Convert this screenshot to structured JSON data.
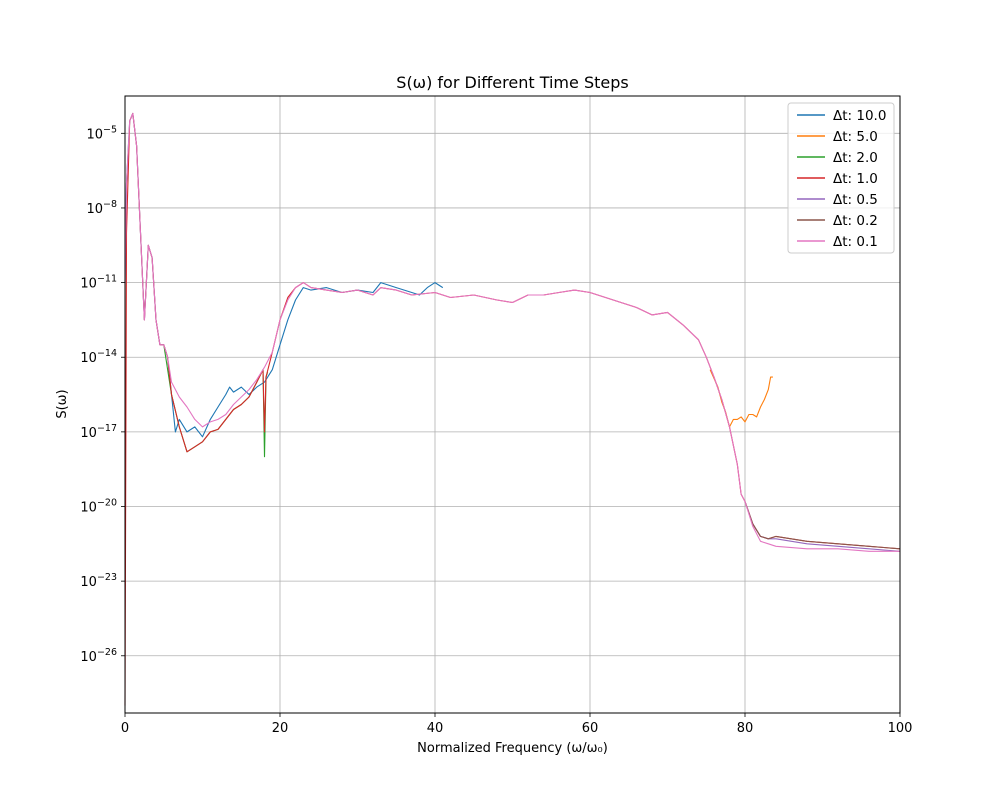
{
  "chart_data": {
    "type": "line",
    "title": "S(ω) for Different Time Steps",
    "xlabel": "Normalized Frequency (ω/ω₀)",
    "ylabel": "S(ω)",
    "xlim": [
      0,
      100
    ],
    "ylim_log10": [
      -28.3,
      -3.5
    ],
    "y_scale": "log",
    "grid": true,
    "legend_position": "top-right",
    "x_ticks": [
      0,
      20,
      40,
      60,
      80,
      100
    ],
    "y_ticks": [
      {
        "exp": -5,
        "label_base": "10",
        "label_exp": "−5"
      },
      {
        "exp": -8,
        "label_base": "10",
        "label_exp": "−8"
      },
      {
        "exp": -11,
        "label_base": "10",
        "label_exp": "−11"
      },
      {
        "exp": -14,
        "label_base": "10",
        "label_exp": "−14"
      },
      {
        "exp": -17,
        "label_base": "10",
        "label_exp": "−17"
      },
      {
        "exp": -20,
        "label_base": "10",
        "label_exp": "−20"
      },
      {
        "exp": -23,
        "label_base": "10",
        "label_exp": "−23"
      },
      {
        "exp": -26,
        "label_base": "10",
        "label_exp": "−26"
      }
    ],
    "series": [
      {
        "name": "Δt: 10.0",
        "color": "#1f77b4",
        "x": [
          0,
          0.2,
          0.6,
          1.0,
          1.5,
          2.0,
          2.5,
          3.0,
          3.5,
          4.0,
          4.5,
          5.0,
          5.5,
          6.0,
          6.5,
          7.0,
          8.0,
          9.0,
          10.0,
          11.0,
          12.0,
          13.0,
          13.5,
          14.0,
          15.0,
          16.0,
          17.0,
          18.0,
          19.0,
          20.0,
          21.0,
          22.0,
          23.0,
          24.0,
          26.0,
          28.0,
          30.0,
          32.0,
          33.0,
          35.0,
          37.0,
          38.0,
          39.0,
          40.0,
          41.0
        ],
        "y": [
          -11,
          -7,
          -4.5,
          -4.2,
          -5.5,
          -9,
          -12.5,
          -9.5,
          -10,
          -12.5,
          -13.5,
          -13.5,
          -14,
          -15.5,
          -17,
          -16.5,
          -17,
          -16.8,
          -17.2,
          -16.5,
          -16,
          -15.5,
          -15.2,
          -15.4,
          -15.2,
          -15.5,
          -15.2,
          -15,
          -14.5,
          -13.5,
          -12.5,
          -11.7,
          -11.2,
          -11.3,
          -11.2,
          -11.4,
          -11.3,
          -11.4,
          -11.0,
          -11.2,
          -11.4,
          -11.5,
          -11.2,
          -11.0,
          -11.2
        ]
      },
      {
        "name": "Δt: 5.0",
        "color": "#ff7f0e",
        "x": [
          75.5,
          76.5,
          77.0,
          77.5,
          78.0,
          78.5,
          79.0,
          79.5,
          80.0,
          80.5,
          81.0,
          81.5,
          82.0,
          82.5,
          83.0,
          83.3,
          83.6
        ],
        "y": [
          -14.5,
          -15.2,
          -15.8,
          -16.2,
          -16.8,
          -16.5,
          -16.5,
          -16.4,
          -16.6,
          -16.3,
          -16.3,
          -16.4,
          -16.0,
          -15.7,
          -15.3,
          -14.8,
          -14.8
        ]
      },
      {
        "name": "Δt: 2.0",
        "color": "#2ca02c",
        "x": [
          5.0,
          6.0,
          7.0,
          8.0,
          9.0,
          10.0,
          11.0,
          12.0,
          13.0,
          14.0,
          15.0,
          16.0,
          17.0,
          17.8,
          18.0,
          18.2,
          18.4
        ],
        "y": [
          -13.5,
          -15.5,
          -16.8,
          -17.8,
          -17.6,
          -17.4,
          -17.0,
          -16.9,
          -16.5,
          -16.1,
          -15.9,
          -15.6,
          -15.0,
          -14.5,
          -18.0,
          -14.8,
          -14.6
        ]
      },
      {
        "name": "Δt: 1.0",
        "color": "#d62728",
        "x": [
          0,
          0.2,
          0.6,
          1.0,
          1.5,
          2.0,
          2.5,
          3.0,
          3.5,
          4.0,
          4.5,
          5.0,
          5.5,
          6.0,
          7.0,
          8.0,
          9.0,
          10.0,
          11.0,
          12.0,
          13.0,
          14.0,
          15.0,
          16.0,
          17.0,
          17.8,
          18.0,
          18.2,
          19.0,
          20.0,
          21.0,
          22.0,
          23.0,
          24.0,
          26.0,
          28.0,
          30.0,
          32.0,
          33.0,
          35.0,
          37.0,
          40.0,
          42.0,
          45.0,
          48.0,
          50.0,
          52.0,
          54.0,
          56.0,
          58.0,
          60.0,
          62.0,
          64.0,
          66.0,
          68.0,
          70.0,
          72.0,
          74.0,
          75.0,
          76.0,
          77.0,
          78.0,
          79.0,
          79.5,
          80.0,
          81.0,
          82.0,
          83.0,
          84.0,
          88.0,
          92.0,
          96.0,
          100.0
        ],
        "y": [
          -28,
          -9,
          -4.5,
          -4.2,
          -5.5,
          -9,
          -12.5,
          -9.5,
          -10,
          -12.5,
          -13.5,
          -13.5,
          -14,
          -15.5,
          -16.8,
          -17.8,
          -17.6,
          -17.4,
          -17.0,
          -16.9,
          -16.5,
          -16.1,
          -15.9,
          -15.6,
          -15.0,
          -14.5,
          -17.0,
          -14.8,
          -13.8,
          -12.5,
          -11.6,
          -11.2,
          -11.0,
          -11.2,
          -11.3,
          -11.4,
          -11.3,
          -11.5,
          -11.2,
          -11.3,
          -11.5,
          -11.4,
          -11.6,
          -11.5,
          -11.7,
          -11.8,
          -11.5,
          -11.5,
          -11.4,
          -11.3,
          -11.4,
          -11.6,
          -11.8,
          -12.0,
          -12.3,
          -12.2,
          -12.7,
          -13.3,
          -14.0,
          -14.8,
          -15.7,
          -16.8,
          -18.3,
          -19.5,
          -19.8,
          -20.7,
          -21.2,
          -21.3,
          -21.2,
          -21.4,
          -21.5,
          -21.6,
          -21.7
        ]
      },
      {
        "name": "Δt: 0.5",
        "color": "#9467bd",
        "x": [
          80.0,
          81.0,
          82.0,
          83.0,
          84.0,
          88.0,
          92.0,
          96.0,
          100.0
        ],
        "y": [
          -19.8,
          -20.7,
          -21.2,
          -21.3,
          -21.3,
          -21.5,
          -21.6,
          -21.7,
          -21.8
        ]
      },
      {
        "name": "Δt: 0.2",
        "color": "#8c564b",
        "x": [
          80.0,
          81.0,
          82.0,
          83.0,
          84.0,
          88.0,
          92.0,
          96.0,
          100.0
        ],
        "y": [
          -19.8,
          -20.7,
          -21.2,
          -21.3,
          -21.2,
          -21.4,
          -21.5,
          -21.6,
          -21.7
        ]
      },
      {
        "name": "Δt: 0.1",
        "color": "#e377c2",
        "x": [
          0,
          0.2,
          0.6,
          1.0,
          1.5,
          2.0,
          2.5,
          3.0,
          3.5,
          4.0,
          4.5,
          5.0,
          5.5,
          6.0,
          7.0,
          8.0,
          9.0,
          10.0,
          11.0,
          12.0,
          13.0,
          14.0,
          15.0,
          16.0,
          17.0,
          18.0,
          19.0,
          20.0,
          21.0,
          22.0,
          23.0,
          24.0,
          26.0,
          28.0,
          30.0,
          32.0,
          33.0,
          35.0,
          37.0,
          40.0,
          42.0,
          45.0,
          48.0,
          50.0,
          52.0,
          54.0,
          56.0,
          58.0,
          60.0,
          62.0,
          64.0,
          66.0,
          68.0,
          70.0,
          72.0,
          74.0,
          75.0,
          76.0,
          77.0,
          78.0,
          79.0,
          79.5,
          80.0,
          81.0,
          82.0,
          83.0,
          84.0,
          88.0,
          92.0,
          96.0,
          100.0
        ],
        "y": [
          -11,
          -7,
          -4.5,
          -4.2,
          -5.5,
          -9,
          -12.5,
          -9.5,
          -10,
          -12.5,
          -13.5,
          -13.5,
          -14,
          -15.0,
          -15.6,
          -16.0,
          -16.5,
          -16.8,
          -16.6,
          -16.5,
          -16.3,
          -15.9,
          -15.6,
          -15.3,
          -14.9,
          -14.4,
          -13.8,
          -12.5,
          -11.7,
          -11.2,
          -11.0,
          -11.2,
          -11.3,
          -11.4,
          -11.3,
          -11.5,
          -11.2,
          -11.3,
          -11.5,
          -11.4,
          -11.6,
          -11.5,
          -11.7,
          -11.8,
          -11.5,
          -11.5,
          -11.4,
          -11.3,
          -11.4,
          -11.6,
          -11.8,
          -12.0,
          -12.3,
          -12.2,
          -12.7,
          -13.3,
          -14.0,
          -14.8,
          -15.7,
          -16.8,
          -18.3,
          -19.5,
          -19.8,
          -20.8,
          -21.4,
          -21.5,
          -21.6,
          -21.7,
          -21.7,
          -21.8,
          -21.8
        ]
      }
    ]
  }
}
